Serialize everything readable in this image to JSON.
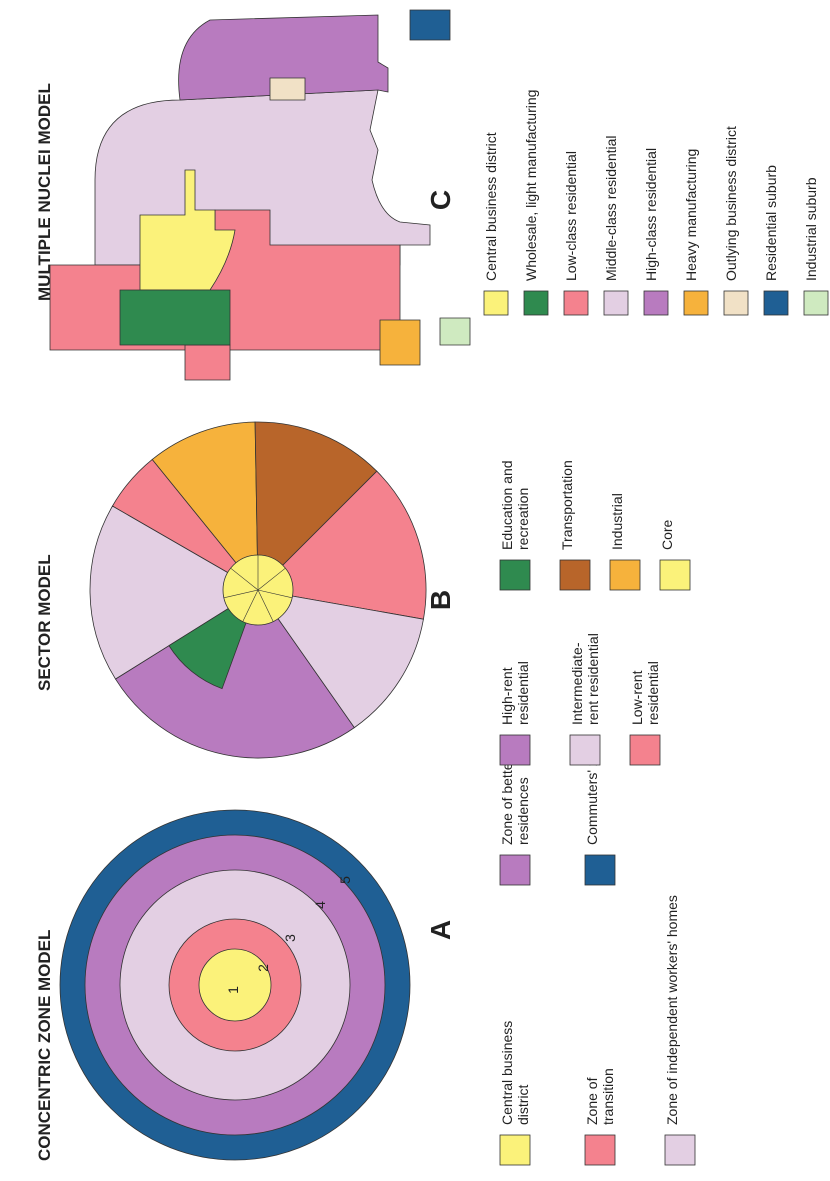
{
  "panels": [
    {
      "title": "CONCENTRIC ZONE MODEL",
      "letter": "A",
      "ring_labels": [
        "1",
        "2",
        "3",
        "4",
        "5"
      ],
      "legend": [
        {
          "lines": [
            "Central business",
            "district"
          ],
          "color": "#fbf27a"
        },
        {
          "lines": [
            "Zone of",
            "transition"
          ],
          "color": "#f4828e"
        },
        {
          "lines": [
            "Zone of independent workers' homes"
          ],
          "color": "#e3cfe3"
        },
        {
          "lines": [
            "Zone of better",
            "residences"
          ],
          "color": "#b87bbf"
        },
        {
          "lines": [
            "Commuters' zone"
          ],
          "color": "#1f5f94"
        }
      ]
    },
    {
      "title": "SECTOR MODEL",
      "letter": "B",
      "legend": [
        {
          "lines": [
            "High-rent",
            "residential"
          ],
          "color": "#b87bbf"
        },
        {
          "lines": [
            "Intermediate-",
            "rent residential"
          ],
          "color": "#e3cfe3"
        },
        {
          "lines": [
            "Low-rent",
            "residential"
          ],
          "color": "#f4828e"
        },
        {
          "lines": [
            "Education and",
            "recreation"
          ],
          "color": "#2f8a4f"
        },
        {
          "lines": [
            "Transportation"
          ],
          "color": "#b8652a"
        },
        {
          "lines": [
            "Industrial"
          ],
          "color": "#f6b23c"
        },
        {
          "lines": [
            "Core"
          ],
          "color": "#fbf27a"
        }
      ]
    },
    {
      "title": "MULTIPLE NUCLEI MODEL",
      "letter": "C",
      "legend": [
        {
          "lines": [
            "Central business district"
          ],
          "color": "#fbf27a"
        },
        {
          "lines": [
            "Wholesale, light manufacturing"
          ],
          "color": "#2f8a4f"
        },
        {
          "lines": [
            "Low-class residential"
          ],
          "color": "#f4828e"
        },
        {
          "lines": [
            "Middle-class residential"
          ],
          "color": "#e3cfe3"
        },
        {
          "lines": [
            "High-class residential"
          ],
          "color": "#b87bbf"
        },
        {
          "lines": [
            "Heavy manufacturing"
          ],
          "color": "#f6b23c"
        },
        {
          "lines": [
            "Outlying business district"
          ],
          "color": "#f1e1c6"
        },
        {
          "lines": [
            "Residential suburb"
          ],
          "color": "#1f5f94"
        },
        {
          "lines": [
            "Industrial suburb"
          ],
          "color": "#cfeac0"
        }
      ]
    }
  ]
}
